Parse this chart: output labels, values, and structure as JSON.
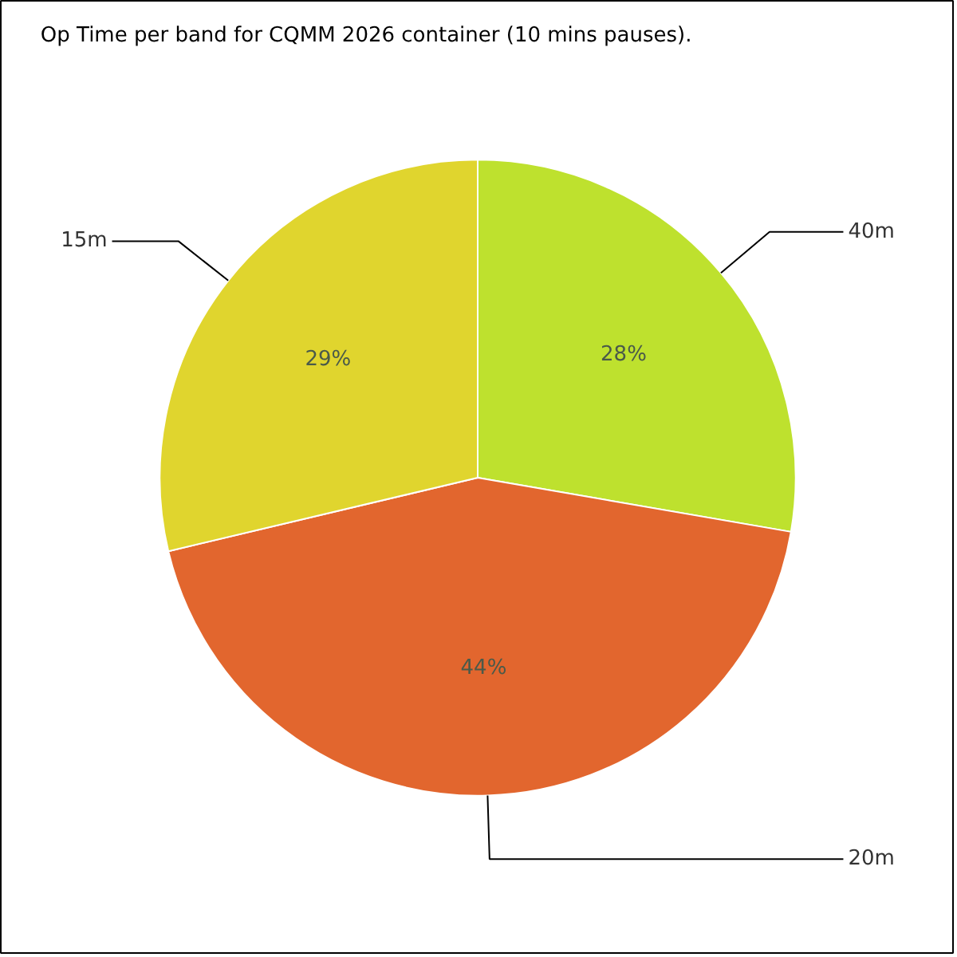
{
  "chart_data": {
    "type": "pie",
    "title": "Op Time per band for CQMM 2026 container (10 mins pauses).",
    "categories": [
      "40m",
      "20m",
      "15m"
    ],
    "values": [
      28,
      44,
      29
    ],
    "value_labels": [
      "28%",
      "44%",
      "29%"
    ],
    "colors": [
      "#bee12e",
      "#e2662e",
      "#e0d52e"
    ]
  }
}
